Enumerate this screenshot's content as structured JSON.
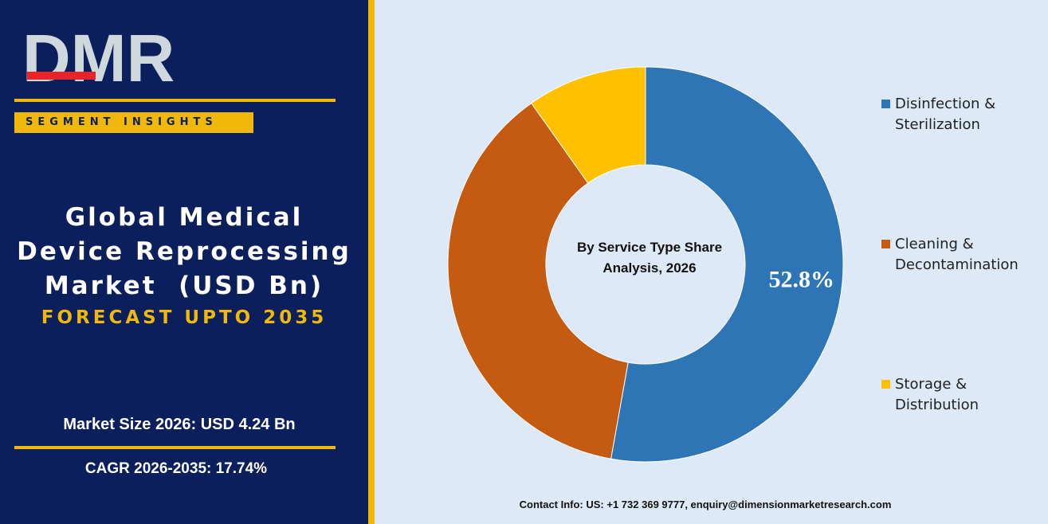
{
  "brand": {
    "logo_text": "DMR",
    "colors": {
      "navy": "#0b1f5c",
      "gold": "#f2b809",
      "logo_silver": "#cfd8dc",
      "logo_red": "#e4262b"
    }
  },
  "panel": {
    "badge": "SEGMENT INSIGHTS",
    "title_lines": [
      "Global Medical",
      "Device Reprocessing",
      "Market  (USD Bn)"
    ],
    "forecast": "FORECAST UPTO 2035",
    "market_size": "Market Size 2026: USD 4.24 Bn",
    "cagr": "CAGR 2026-2035: 17.74%"
  },
  "chart_data": {
    "type": "pie",
    "subtype": "donut",
    "title": "By Service Type Share Analysis, 2026",
    "title_lines": [
      "By Service Type Share",
      "Analysis, 2026"
    ],
    "slices": [
      {
        "label": "Disinfection & Sterilization",
        "legend_lines": "Disinfection &\nSterilization",
        "value": 52.8,
        "color": "#2e75b6",
        "data_label": "52.8%"
      },
      {
        "label": "Cleaning & Decontamination",
        "legend_lines": "Cleaning &\nDecontamination",
        "value": 37.4,
        "color": "#c55a11",
        "data_label": ""
      },
      {
        "label": "Storage & Distribution",
        "legend_lines": "Storage &\nDistribution",
        "value": 9.8,
        "color": "#ffc000",
        "data_label": ""
      }
    ],
    "legend_position": "right"
  },
  "footer": {
    "contact": "Contact Info: US: +1 732 369 9777, enquiry@dimensionmarketresearch.com"
  }
}
